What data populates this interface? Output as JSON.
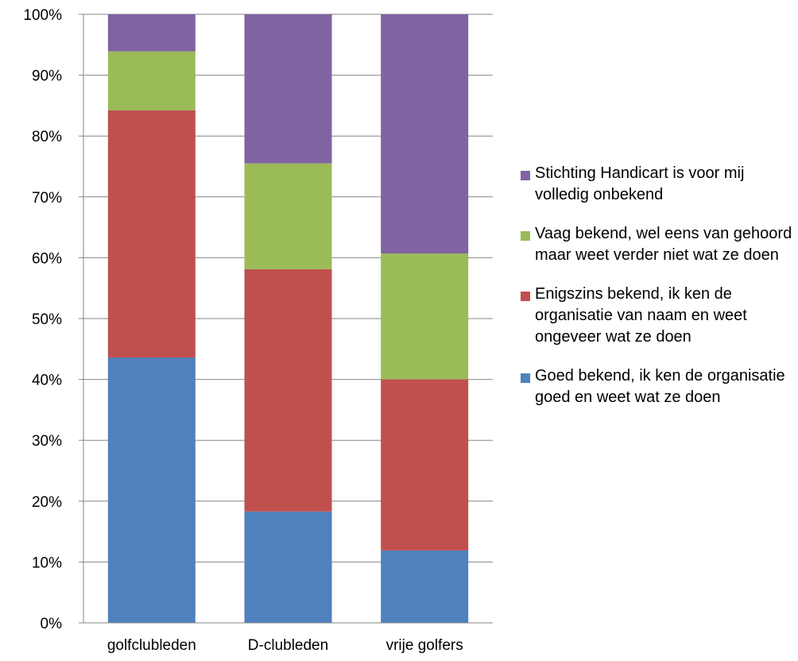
{
  "chart_data": {
    "type": "bar",
    "stacked": true,
    "percent_stacked": true,
    "title": "",
    "xlabel": "",
    "ylabel": "",
    "categories": [
      "golfclubleden",
      "D-clubleden",
      "vrije golfers"
    ],
    "ylim": [
      0,
      100
    ],
    "y_ticks": [
      "0%",
      "10%",
      "20%",
      "30%",
      "40%",
      "50%",
      "60%",
      "70%",
      "80%",
      "90%",
      "100%"
    ],
    "grid": true,
    "legend_position": "right",
    "series": [
      {
        "name": "Goed bekend, ik ken de organisatie goed en weet wat ze doen",
        "color": "#4F81BD",
        "values": [
          43.6,
          18.3,
          11.9
        ]
      },
      {
        "name": "Enigszins bekend, ik ken de organisatie van naam en weet ongeveer wat ze doen",
        "color": "#C0504D",
        "values": [
          40.6,
          39.8,
          28.1
        ]
      },
      {
        "name": "Vaag bekend, wel eens van gehoord maar weet verder niet wat ze doen",
        "color": "#9BBB59",
        "values": [
          9.7,
          17.4,
          20.7
        ]
      },
      {
        "name": "Stichting Handicart is voor mij volledig onbekend",
        "color": "#8064A2",
        "values": [
          6.1,
          24.5,
          39.3
        ]
      }
    ]
  }
}
